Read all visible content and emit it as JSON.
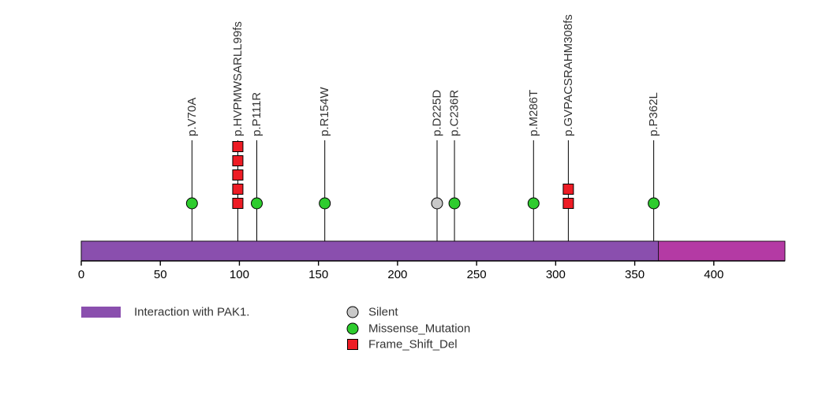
{
  "chart_data": {
    "type": "lollipop",
    "title": "",
    "xlabel": "",
    "ylabel": "",
    "xlim": [
      0,
      445
    ],
    "x_ticks": [
      0,
      50,
      100,
      150,
      200,
      250,
      300,
      350,
      400
    ],
    "grid": false,
    "protein": {
      "length": 445,
      "backbone_color": "#b43aa4",
      "domains": [
        {
          "name": "Interaction with PAK1.",
          "start": 0,
          "end": 365,
          "color": "#8a4fae"
        }
      ]
    },
    "mutations": [
      {
        "label": "p.V70A",
        "position": 70,
        "type": "Missense_Mutation",
        "count": 1
      },
      {
        "label": "p.HVPMWSARLL99fs",
        "position": 99,
        "type": "Frame_Shift_Del",
        "count": 5
      },
      {
        "label": "p.P111R",
        "position": 111,
        "type": "Missense_Mutation",
        "count": 1
      },
      {
        "label": "p.R154W",
        "position": 154,
        "type": "Missense_Mutation",
        "count": 1
      },
      {
        "label": "p.D225D",
        "position": 225,
        "type": "Silent",
        "count": 1
      },
      {
        "label": "p.C236R",
        "position": 236,
        "type": "Missense_Mutation",
        "count": 1
      },
      {
        "label": "p.M286T",
        "position": 286,
        "type": "Missense_Mutation",
        "count": 1
      },
      {
        "label": "p.GVPACSRAHM308fs",
        "position": 308,
        "type": "Frame_Shift_Del",
        "count": 2
      },
      {
        "label": "p.P362L",
        "position": 362,
        "type": "Missense_Mutation",
        "count": 1
      }
    ],
    "mutation_types": [
      {
        "name": "Silent",
        "shape": "circle",
        "color": "#c9c9c9"
      },
      {
        "name": "Missense_Mutation",
        "shape": "circle",
        "color": "#2ecc2e"
      },
      {
        "name": "Frame_Shift_Del",
        "shape": "square",
        "color": "#ee1c25"
      }
    ],
    "legend": {
      "domain_label": "Interaction with PAK1.",
      "items": [
        "Silent",
        "Missense_Mutation",
        "Frame_Shift_Del"
      ],
      "position": "bottom"
    },
    "colors": {
      "stem": "#000000",
      "axis": "#000000",
      "label_text": "#333333",
      "tick_text": "#000000"
    }
  }
}
